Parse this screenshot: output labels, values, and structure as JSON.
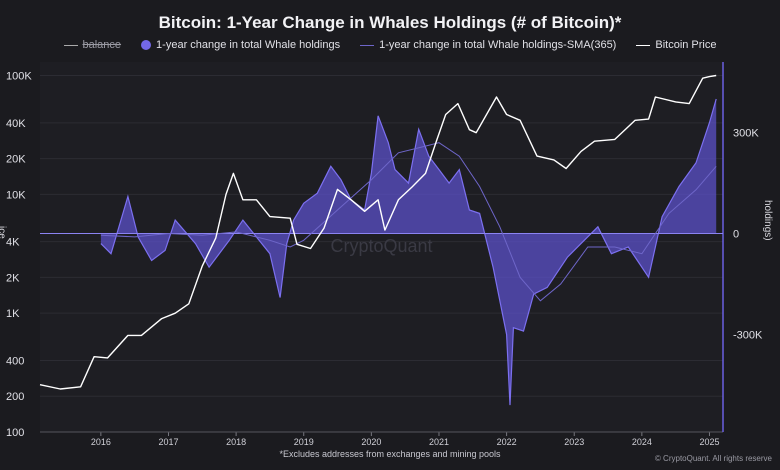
{
  "title": "Bitcoin: 1-Year Change in Whales Holdings (# of Bitcoin)*",
  "legend": {
    "balance": "balance",
    "change": "1-year change in total Whale holdings",
    "sma": "1-year change in total Whale holdings-SMA(365)",
    "price": "Bitcoin Price"
  },
  "footnote": "*Excludes addresses from exchanges and mining pools",
  "watermark_text": "CryptoQuant",
  "credit": "© CryptoQuant. All rights reserve",
  "axis_label_right": "holdings)",
  "axis_label_left": "ice",
  "colors": {
    "background": "#1b1b1f",
    "change_fill": "#5b50c8",
    "change_line": "#7c70f0",
    "sma": "#6e66c9",
    "price": "#ffffff"
  },
  "chart_data": {
    "type": "area",
    "x_ticks": [
      "2016",
      "2017",
      "2018",
      "2019",
      "2020",
      "2021",
      "2022",
      "2023",
      "2024",
      "2025"
    ],
    "left_axis": {
      "scale": "log",
      "ticks": [
        "100",
        "200",
        "400",
        "1K",
        "2K",
        "4K",
        "10K",
        "20K",
        "40K",
        "100K"
      ],
      "ylim": [
        100,
        130000
      ]
    },
    "right_axis": {
      "ticks": [
        "-300K",
        "0",
        "300K"
      ],
      "ylim": [
        -590000,
        510000
      ]
    },
    "x_range": [
      2015.1,
      2025.2
    ],
    "series": [
      {
        "name": "Bitcoin Price",
        "axis": "left",
        "x": [
          2015.1,
          2015.4,
          2015.7,
          2015.9,
          2016.1,
          2016.4,
          2016.6,
          2016.9,
          2017.1,
          2017.3,
          2017.5,
          2017.7,
          2017.85,
          2017.96,
          2018.1,
          2018.3,
          2018.5,
          2018.8,
          2018.9,
          2019.1,
          2019.3,
          2019.5,
          2019.7,
          2019.9,
          2020.1,
          2020.2,
          2020.4,
          2020.6,
          2020.8,
          2020.97,
          2021.1,
          2021.28,
          2021.45,
          2021.55,
          2021.85,
          2022.0,
          2022.2,
          2022.45,
          2022.7,
          2022.88,
          2023.1,
          2023.3,
          2023.6,
          2023.9,
          2024.1,
          2024.2,
          2024.5,
          2024.7,
          2024.9,
          2025.0,
          2025.1
        ],
        "y": [
          250,
          230,
          240,
          430,
          420,
          650,
          650,
          900,
          1000,
          1200,
          2500,
          4300,
          10000,
          15000,
          9000,
          9000,
          6500,
          6300,
          3800,
          3500,
          5200,
          11000,
          9000,
          7200,
          9000,
          5000,
          9000,
          11500,
          15000,
          29000,
          47000,
          58000,
          35000,
          33000,
          66000,
          47000,
          42000,
          21000,
          19500,
          16500,
          23000,
          28000,
          29000,
          42000,
          43000,
          66000,
          60000,
          58000,
          95000,
          98000,
          100000
        ]
      },
      {
        "name": "1-year change in total Whale holdings",
        "axis": "right",
        "x": [
          2016.0,
          2016.15,
          2016.4,
          2016.55,
          2016.75,
          2016.95,
          2017.1,
          2017.4,
          2017.6,
          2017.9,
          2018.1,
          2018.5,
          2018.65,
          2018.75,
          2018.85,
          2019.0,
          2019.2,
          2019.4,
          2019.55,
          2019.7,
          2019.9,
          2020.0,
          2020.1,
          2020.25,
          2020.35,
          2020.55,
          2020.7,
          2020.85,
          2021.0,
          2021.15,
          2021.3,
          2021.45,
          2021.6,
          2021.8,
          2022.0,
          2022.05,
          2022.1,
          2022.25,
          2022.4,
          2022.6,
          2022.9,
          2023.1,
          2023.35,
          2023.55,
          2023.8,
          2024.1,
          2024.3,
          2024.55,
          2024.8,
          2025.0,
          2025.1
        ],
        "y": [
          -30000,
          -60000,
          110000,
          -10000,
          -80000,
          -50000,
          40000,
          -30000,
          -100000,
          -20000,
          40000,
          -60000,
          -190000,
          -30000,
          40000,
          90000,
          120000,
          200000,
          160000,
          100000,
          70000,
          180000,
          350000,
          270000,
          190000,
          150000,
          310000,
          230000,
          190000,
          150000,
          190000,
          70000,
          60000,
          -100000,
          -300000,
          -510000,
          -280000,
          -290000,
          -180000,
          -160000,
          -70000,
          -30000,
          20000,
          -60000,
          -40000,
          -130000,
          50000,
          140000,
          210000,
          330000,
          400000
        ]
      },
      {
        "name": "1-year change in total Whale holdings-SMA(365)",
        "axis": "right",
        "x": [
          2016.0,
          2016.5,
          2017.0,
          2017.5,
          2018.0,
          2018.5,
          2018.8,
          2019.0,
          2019.5,
          2020.0,
          2020.4,
          2020.8,
          2021.0,
          2021.3,
          2021.6,
          2021.9,
          2022.2,
          2022.5,
          2022.8,
          2023.2,
          2023.6,
          2024.0,
          2024.4,
          2024.8,
          2025.1
        ],
        "y": [
          -5000,
          -10000,
          0,
          -5000,
          5000,
          -20000,
          -40000,
          -20000,
          70000,
          160000,
          240000,
          260000,
          270000,
          230000,
          140000,
          20000,
          -130000,
          -200000,
          -150000,
          -40000,
          -40000,
          -60000,
          60000,
          130000,
          200000
        ]
      }
    ]
  }
}
